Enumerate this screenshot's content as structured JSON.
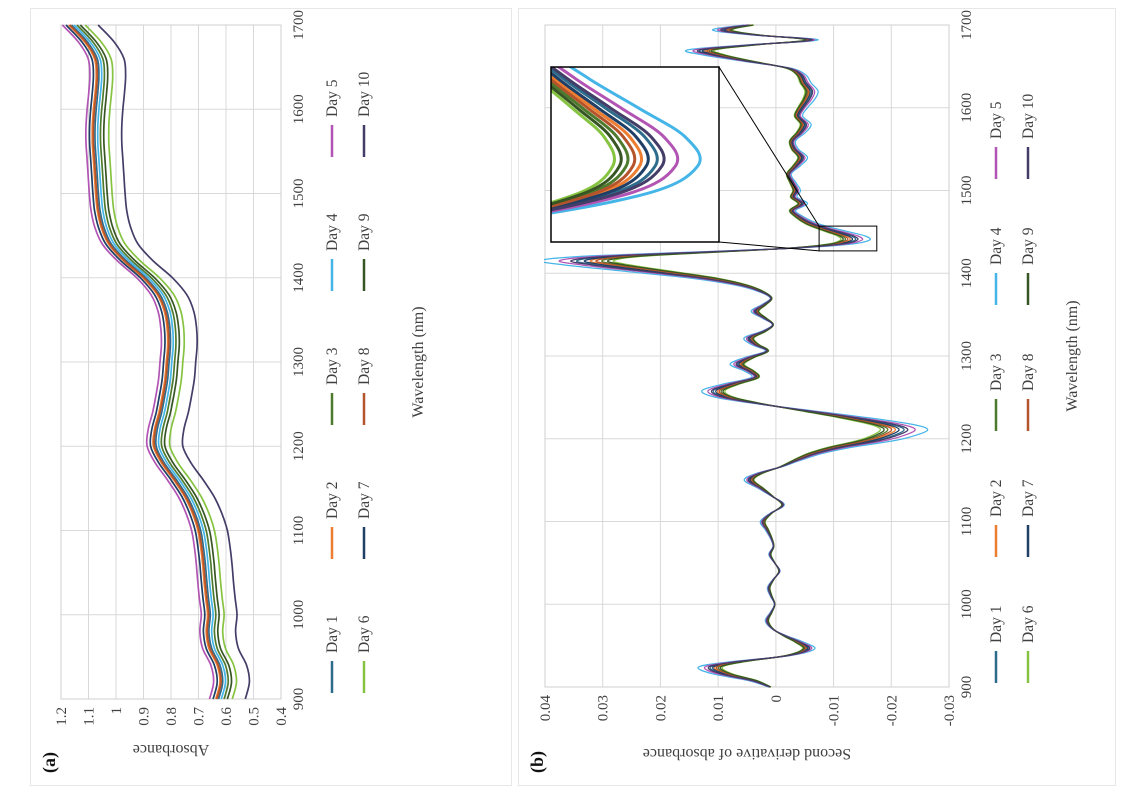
{
  "panels": {
    "a": {
      "label": "(a)"
    },
    "b": {
      "label": "(b)"
    }
  },
  "chart_data": [
    {
      "id": "a",
      "type": "line",
      "title": "",
      "xlabel": "Wavelength (nm)",
      "ylabel": "Absorbance",
      "xlim": [
        900,
        1700
      ],
      "ylim": [
        0.4,
        1.2
      ],
      "x_ticks": [
        900,
        1000,
        1100,
        1200,
        1300,
        1400,
        1500,
        1600,
        1700
      ],
      "y_ticks": [
        "0.4",
        "0.5",
        "0.6",
        "0.7",
        "0.8",
        "0.9",
        "1",
        "1.1",
        "1.2"
      ],
      "grid": true,
      "legend_position": "below",
      "x": [
        900,
        920,
        940,
        960,
        980,
        1000,
        1020,
        1040,
        1060,
        1080,
        1100,
        1120,
        1140,
        1160,
        1180,
        1200,
        1220,
        1240,
        1260,
        1280,
        1300,
        1320,
        1340,
        1360,
        1380,
        1400,
        1420,
        1440,
        1460,
        1480,
        1500,
        1520,
        1540,
        1560,
        1580,
        1600,
        1620,
        1640,
        1660,
        1680,
        1700
      ],
      "base_values": [
        0.615,
        0.6,
        0.61,
        0.64,
        0.65,
        0.645,
        0.652,
        0.658,
        0.663,
        0.67,
        0.68,
        0.7,
        0.728,
        0.768,
        0.812,
        0.842,
        0.838,
        0.822,
        0.81,
        0.8,
        0.795,
        0.79,
        0.792,
        0.802,
        0.828,
        0.88,
        0.95,
        1.005,
        1.032,
        1.046,
        1.052,
        1.056,
        1.06,
        1.064,
        1.064,
        1.06,
        1.054,
        1.05,
        1.056,
        1.092,
        1.15
      ],
      "series_rule": "values[i] = base_values[i] + offset",
      "series": [
        {
          "name": "Day 1",
          "color": "#2E6C8C",
          "offset": 0.012
        },
        {
          "name": "Day 2",
          "color": "#ED7D31",
          "offset": 0.022
        },
        {
          "name": "Day 3",
          "color": "#4E7A2E",
          "offset": -0.008
        },
        {
          "name": "Day 4",
          "color": "#45B5E8",
          "offset": 0.002
        },
        {
          "name": "Day 5",
          "color": "#B254B4",
          "offset": 0.045
        },
        {
          "name": "Day 6",
          "color": "#86C341",
          "offset": -0.038
        },
        {
          "name": "Day 7",
          "color": "#1F3F66",
          "offset": 0.032
        },
        {
          "name": "Day 8",
          "color": "#B5532B",
          "offset": 0.018
        },
        {
          "name": "Day 9",
          "color": "#375623",
          "offset": -0.02
        },
        {
          "name": "Day 10",
          "color": "#433D68",
          "offset": -0.085
        }
      ]
    },
    {
      "id": "b",
      "type": "line",
      "title": "",
      "xlabel": "Wavelength (nm)",
      "ylabel": "Second derivative of absorbance",
      "xlim": [
        900,
        1700
      ],
      "ylim": [
        -0.03,
        0.04
      ],
      "x_ticks": [
        900,
        1000,
        1100,
        1200,
        1300,
        1400,
        1500,
        1600,
        1700
      ],
      "y_ticks": [
        "-0.03",
        "-0.02",
        "-0.01",
        "0",
        "0.01",
        "0.02",
        "0.03",
        "0.04"
      ],
      "grid": true,
      "legend_position": "below",
      "x": [
        900,
        908,
        916,
        924,
        930,
        938,
        946,
        954,
        962,
        970,
        980,
        990,
        1000,
        1010,
        1020,
        1030,
        1040,
        1050,
        1060,
        1070,
        1080,
        1090,
        1100,
        1110,
        1120,
        1130,
        1140,
        1150,
        1158,
        1166,
        1174,
        1182,
        1190,
        1198,
        1206,
        1212,
        1218,
        1226,
        1234,
        1242,
        1250,
        1258,
        1266,
        1274,
        1282,
        1290,
        1298,
        1306,
        1314,
        1322,
        1330,
        1338,
        1346,
        1354,
        1362,
        1370,
        1378,
        1386,
        1394,
        1402,
        1410,
        1415,
        1420,
        1425,
        1430,
        1435,
        1440,
        1445,
        1450,
        1455,
        1460,
        1468,
        1476,
        1484,
        1492,
        1500,
        1510,
        1520,
        1530,
        1540,
        1550,
        1560,
        1570,
        1580,
        1590,
        1600,
        1610,
        1620,
        1630,
        1640,
        1648,
        1656,
        1664,
        1670,
        1676,
        1682,
        1688,
        1694,
        1700
      ],
      "base_values": [
        0.001,
        0.004,
        0.009,
        0.011,
        0.007,
        -0.002,
        -0.0055,
        -0.004,
        -0.0015,
        0.0005,
        0.0015,
        0.0008,
        0.0002,
        0.0008,
        0.0012,
        0.0004,
        -0.0006,
        0.0002,
        0.001,
        0.0004,
        0.0008,
        0.0015,
        0.0022,
        0.0008,
        -0.0012,
        0.0005,
        0.0025,
        0.0045,
        0.0028,
        -0.0008,
        -0.0035,
        -0.0065,
        -0.011,
        -0.017,
        -0.0205,
        -0.0215,
        -0.019,
        -0.0125,
        -0.005,
        0.0025,
        0.0085,
        0.0105,
        0.0075,
        0.0035,
        0.0045,
        0.0065,
        0.0045,
        0.0015,
        0.0035,
        0.0045,
        0.002,
        0.0005,
        0.002,
        0.0035,
        0.002,
        0.0008,
        0.0025,
        0.006,
        0.012,
        0.021,
        0.03,
        0.0335,
        0.0285,
        0.014,
        -0.002,
        -0.0105,
        -0.0133,
        -0.0127,
        -0.0104,
        -0.008,
        -0.006,
        -0.004,
        -0.0028,
        -0.0045,
        -0.003,
        -0.0035,
        -0.0028,
        -0.0022,
        -0.0035,
        -0.0045,
        -0.0032,
        -0.0028,
        -0.0042,
        -0.005,
        -0.0038,
        -0.0045,
        -0.0055,
        -0.006,
        -0.005,
        -0.0042,
        -0.002,
        0.0045,
        0.0105,
        0.0125,
        0.004,
        -0.006,
        0.0035,
        0.009,
        0.0045
      ],
      "series_rule": "values[i] = base_values[i] * scale",
      "series": [
        {
          "name": "Day 1",
          "color": "#2E6C8C",
          "scale": 1.03
        },
        {
          "name": "Day 2",
          "color": "#ED7D31",
          "scale": 0.96
        },
        {
          "name": "Day 3",
          "color": "#4E7A2E",
          "scale": 0.9
        },
        {
          "name": "Day 4",
          "color": "#45B5E8",
          "scale": 1.22
        },
        {
          "name": "Day 5",
          "color": "#B254B4",
          "scale": 1.12
        },
        {
          "name": "Day 6",
          "color": "#86C341",
          "scale": 0.84
        },
        {
          "name": "Day 7",
          "color": "#1F3F66",
          "scale": 0.99
        },
        {
          "name": "Day 8",
          "color": "#B5532B",
          "scale": 0.93
        },
        {
          "name": "Day 9",
          "color": "#375623",
          "scale": 0.87
        },
        {
          "name": "Day 10",
          "color": "#433D68",
          "scale": 1.06
        }
      ],
      "inset": {
        "x_range": [
          1427,
          1457
        ],
        "y_range": [
          -0.0175,
          -0.0075
        ],
        "description": "zoomed view of the second-derivative minimum near 1440 nm"
      }
    }
  ]
}
